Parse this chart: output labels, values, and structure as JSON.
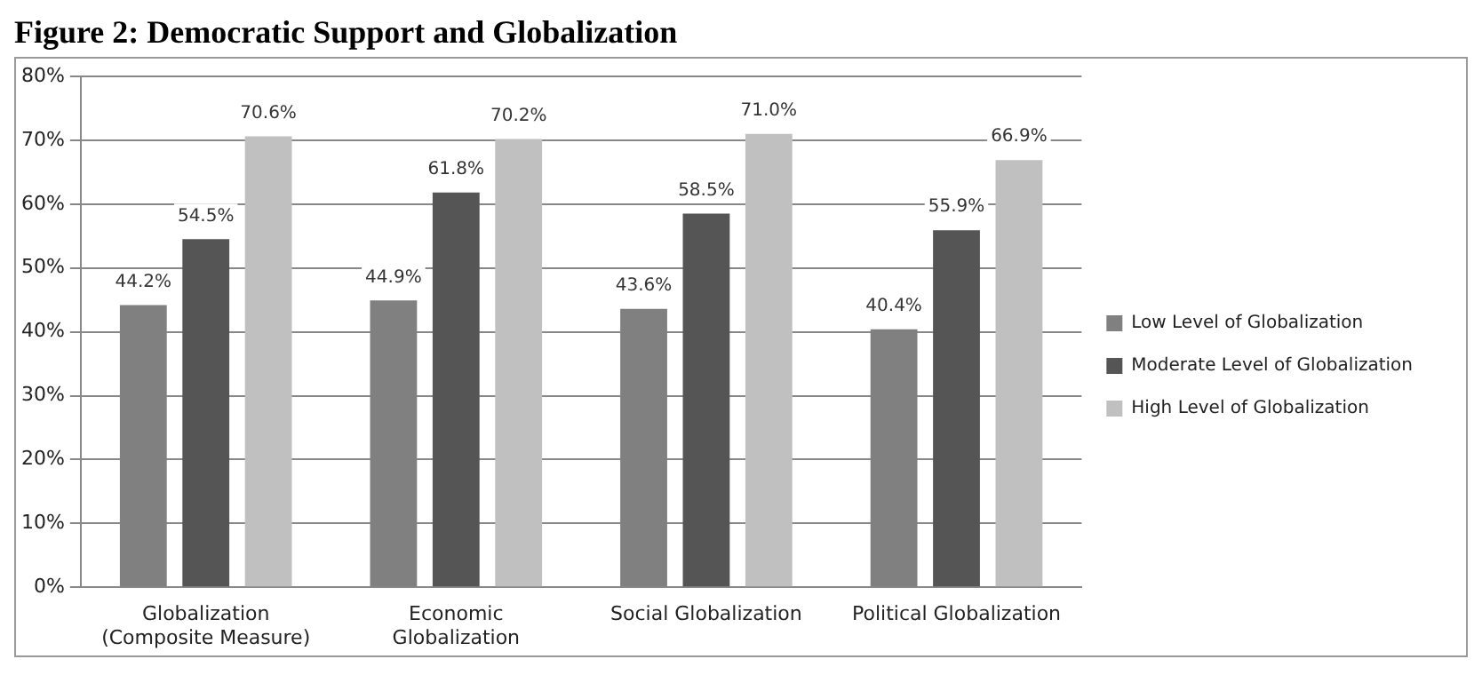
{
  "chart_data": {
    "type": "bar",
    "title": "Figure 2: Democratic Support and Globalization",
    "categories": [
      "Globalization\n(Composite Measure)",
      "Economic\nGlobalization",
      "Social Globalization",
      "Political Globalization"
    ],
    "series": [
      {
        "name": "Low Level of Globalization",
        "color": "#808080",
        "values": [
          44.2,
          44.9,
          43.6,
          40.4
        ],
        "value_labels": [
          "44.2%",
          "44.9%",
          "43.6%",
          "40.4%"
        ]
      },
      {
        "name": "Moderate Level of Globalization",
        "color": "#555555",
        "values": [
          54.5,
          61.8,
          58.5,
          55.9
        ],
        "value_labels": [
          "54.5%",
          "61.8%",
          "58.5%",
          "55.9%"
        ]
      },
      {
        "name": "High Level of Globalization",
        "color": "#c0c0c0",
        "values": [
          70.6,
          70.2,
          71.0,
          66.9
        ],
        "value_labels": [
          "70.6%",
          "70.2%",
          "71.0%",
          "66.9%"
        ]
      }
    ],
    "ylim": [
      0,
      80
    ],
    "yticks": [
      {
        "value": 0,
        "label": "0%"
      },
      {
        "value": 10,
        "label": "10%"
      },
      {
        "value": 20,
        "label": "20%"
      },
      {
        "value": 30,
        "label": "30%"
      },
      {
        "value": 40,
        "label": "40%"
      },
      {
        "value": 50,
        "label": "50%"
      },
      {
        "value": 60,
        "label": "60%"
      },
      {
        "value": 70,
        "label": "70%"
      },
      {
        "value": 80,
        "label": "80%"
      }
    ],
    "grid": "y",
    "legend": "right"
  }
}
